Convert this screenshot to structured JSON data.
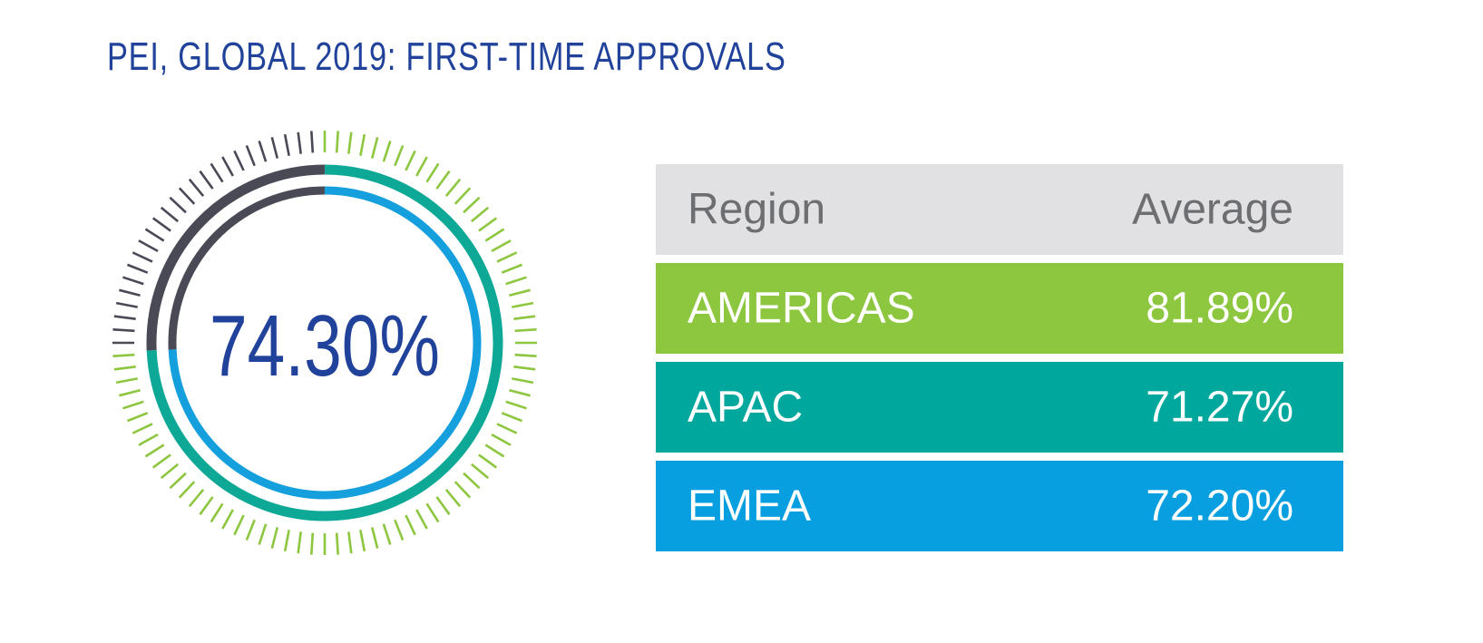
{
  "title": "PEI, GLOBAL 2019: FIRST-TIME APPROVALS",
  "gauge": {
    "value_label": "74.30%",
    "colors": {
      "inner_ring": "#159fdc",
      "middle_ring": "#0ea897",
      "outer_ticks": "#8dc63f",
      "remainder": "#4a4a57",
      "value_text": "#21429a"
    }
  },
  "table": {
    "headers": [
      "Region",
      "Average"
    ],
    "rows": [
      {
        "region": "AMERICAS",
        "average": "81.89%",
        "color": "#8dc63f"
      },
      {
        "region": "APAC",
        "average": "71.27%",
        "color": "#00a79d"
      },
      {
        "region": "EMEA",
        "average": "72.20%",
        "color": "#079fe0"
      }
    ]
  },
  "chart_data": {
    "type": "table",
    "title": "PEI, GLOBAL 2019: FIRST-TIME APPROVALS",
    "overall": 74.3,
    "columns": [
      "Region",
      "Average"
    ],
    "categories": [
      "AMERICAS",
      "APAC",
      "EMEA"
    ],
    "values": [
      81.89,
      71.27,
      72.2
    ],
    "series": [
      {
        "name": "AMERICAS",
        "value": 81.89,
        "color": "#8dc63f"
      },
      {
        "name": "APAC",
        "value": 71.27,
        "color": "#00a79d"
      },
      {
        "name": "EMEA",
        "value": 72.2,
        "color": "#079fe0"
      }
    ]
  }
}
